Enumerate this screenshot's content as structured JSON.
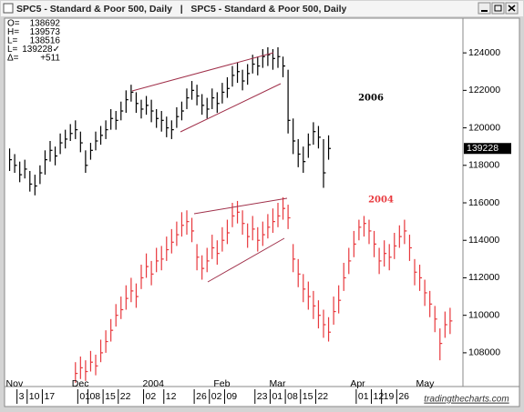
{
  "window_title": "SPC5 - Standard & Poor 500, Daily   |   SPC5 - Standard & Poor 500, Daily",
  "info": [
    {
      "label": "O=",
      "value": "138692"
    },
    {
      "label": "H=",
      "value": "139573"
    },
    {
      "label": "L=",
      "value": "138516"
    },
    {
      "label": "L=",
      "value": "139228✓"
    },
    {
      "label": "Δ=",
      "value": "+511"
    }
  ],
  "price_marker": "139228",
  "watermark": "tradingthecharts.com",
  "chart_data": {
    "type": "hlc",
    "xlim": [
      0,
      90
    ],
    "ylim": [
      106200,
      125850
    ],
    "yticks": [
      108000,
      110000,
      112000,
      114000,
      116000,
      118000,
      120000,
      122000,
      124000
    ],
    "xticks_months": [
      {
        "value": 1,
        "label": "Nov"
      },
      {
        "value": 14,
        "label": "Dec"
      },
      {
        "value": 28,
        "label": "2004"
      },
      {
        "value": 42,
        "label": "Feb"
      },
      {
        "value": 53,
        "label": "Mar"
      },
      {
        "value": 69,
        "label": "Apr"
      },
      {
        "value": 82,
        "label": "May"
      }
    ],
    "xticks_days": [
      {
        "value": 3,
        "label": "3"
      },
      {
        "value": 5,
        "label": "10"
      },
      {
        "value": 8,
        "label": "17"
      },
      {
        "value": 15,
        "label": "01"
      },
      {
        "value": 17,
        "label": "08"
      },
      {
        "value": 20,
        "label": "15"
      },
      {
        "value": 23,
        "label": "22"
      },
      {
        "value": 28,
        "label": "02"
      },
      {
        "value": 32,
        "label": "12"
      },
      {
        "value": 38,
        "label": "26"
      },
      {
        "value": 41,
        "label": "02"
      },
      {
        "value": 44,
        "label": "09"
      },
      {
        "value": 50,
        "label": "23"
      },
      {
        "value": 53,
        "label": "01"
      },
      {
        "value": 56,
        "label": "08"
      },
      {
        "value": 59,
        "label": "15"
      },
      {
        "value": 62,
        "label": "22"
      },
      {
        "value": 70,
        "label": "01"
      },
      {
        "value": 73,
        "label": "12"
      },
      {
        "value": 75,
        "label": "19"
      },
      {
        "value": 78,
        "label": "26"
      }
    ],
    "series": [
      {
        "name": "2006",
        "color": "#000000",
        "values": [
          null,
          [
            118900,
            117700,
            118300
          ],
          [
            118600,
            117600,
            118000
          ],
          [
            118200,
            117100,
            117500
          ],
          [
            118300,
            117300,
            117800
          ],
          [
            117700,
            116600,
            117000
          ],
          [
            117500,
            116400,
            116900
          ],
          [
            118000,
            117000,
            117600
          ],
          [
            118800,
            117500,
            118300
          ],
          [
            119300,
            118200,
            118800
          ],
          [
            119000,
            118000,
            118500
          ],
          [
            119700,
            118600,
            119200
          ],
          [
            119900,
            118900,
            119400
          ],
          [
            120200,
            119300,
            119700
          ],
          [
            120400,
            119400,
            119900
          ],
          [
            119800,
            118700,
            119200
          ],
          [
            118800,
            117600,
            118000
          ],
          [
            119200,
            118300,
            118800
          ],
          [
            119800,
            118800,
            119300
          ],
          [
            120100,
            119100,
            119600
          ],
          [
            120400,
            119400,
            119900
          ],
          [
            121000,
            119900,
            120500
          ],
          [
            120900,
            119900,
            120400
          ],
          [
            121400,
            120400,
            120900
          ],
          [
            122000,
            120800,
            121500
          ],
          [
            122300,
            121400,
            121900
          ],
          [
            121900,
            120800,
            121300
          ],
          [
            121500,
            120500,
            121000
          ],
          [
            121700,
            120700,
            121200
          ],
          [
            121500,
            120300,
            120900
          ],
          [
            121000,
            120000,
            120500
          ],
          [
            120900,
            119800,
            120400
          ],
          [
            120600,
            119500,
            120000
          ],
          [
            120400,
            119400,
            119900
          ],
          [
            121100,
            120000,
            120600
          ],
          [
            121400,
            120400,
            120900
          ],
          [
            122100,
            121000,
            121600
          ],
          [
            122500,
            121500,
            122000
          ],
          [
            122300,
            121200,
            121700
          ],
          [
            121800,
            120700,
            121200
          ],
          [
            121600,
            120500,
            121000
          ],
          [
            122100,
            121000,
            121600
          ],
          [
            121900,
            120800,
            121300
          ],
          [
            122400,
            121300,
            121900
          ],
          [
            122700,
            121600,
            122100
          ],
          [
            123300,
            122200,
            122800
          ],
          [
            123500,
            122400,
            123000
          ],
          [
            123100,
            122000,
            122500
          ],
          [
            123400,
            122300,
            122900
          ],
          [
            123900,
            122900,
            123400
          ],
          [
            123800,
            122800,
            123300
          ],
          [
            124200,
            123200,
            123800
          ],
          [
            124300,
            123300,
            123900
          ],
          [
            124200,
            123100,
            123700
          ],
          [
            124300,
            123200,
            123800
          ],
          [
            123800,
            122700,
            123300
          ],
          [
            123100,
            119700,
            120400
          ],
          [
            120500,
            118600,
            119300
          ],
          [
            119400,
            117900,
            118600
          ],
          [
            119000,
            117600,
            118200
          ],
          [
            119700,
            118400,
            119100
          ],
          [
            120300,
            119100,
            119800
          ],
          [
            120100,
            118900,
            119500
          ],
          [
            119400,
            116800,
            117600
          ],
          [
            119600,
            118300,
            118900
          ],
          null,
          null,
          null,
          null,
          null,
          null,
          null,
          null,
          null,
          null,
          null,
          null,
          null,
          null,
          null,
          null,
          null,
          null,
          null,
          null,
          null,
          null,
          null,
          null
        ]
      },
      {
        "name": "2004",
        "color": "#e8383d",
        "values": [
          null,
          null,
          null,
          null,
          null,
          null,
          null,
          null,
          null,
          null,
          null,
          null,
          null,
          null,
          [
            107500,
            106400,
            106900
          ],
          [
            107800,
            106600,
            107200
          ],
          [
            107600,
            106500,
            107000
          ],
          [
            108100,
            107000,
            107500
          ],
          [
            107900,
            106800,
            107300
          ],
          [
            108700,
            107500,
            108000
          ],
          [
            109200,
            108000,
            108600
          ],
          [
            109800,
            108600,
            109200
          ],
          [
            110600,
            109400,
            110000
          ],
          [
            111000,
            109800,
            110300
          ],
          [
            111600,
            110300,
            110900
          ],
          [
            112000,
            110700,
            111300
          ],
          [
            111700,
            110400,
            111000
          ],
          [
            112700,
            111400,
            112000
          ],
          [
            113300,
            112000,
            112600
          ],
          [
            112900,
            111600,
            112200
          ],
          [
            113600,
            112300,
            112900
          ],
          [
            113700,
            112400,
            113000
          ],
          [
            114200,
            112900,
            113500
          ],
          [
            114600,
            113300,
            113900
          ],
          [
            115000,
            113700,
            114300
          ],
          [
            115500,
            114200,
            114800
          ],
          [
            115600,
            114300,
            115000
          ],
          [
            115200,
            113900,
            114500
          ],
          [
            113800,
            112400,
            113100
          ],
          [
            113200,
            111900,
            112500
          ],
          [
            113600,
            112300,
            112900
          ],
          [
            114300,
            113000,
            113600
          ],
          [
            114000,
            112700,
            113300
          ],
          [
            114700,
            113400,
            114000
          ],
          [
            115100,
            113800,
            114400
          ],
          [
            116000,
            114700,
            115300
          ],
          [
            116100,
            114900,
            115500
          ],
          [
            115600,
            114300,
            114900
          ],
          [
            114900,
            113600,
            114200
          ],
          [
            115300,
            114000,
            114600
          ],
          [
            114700,
            113400,
            114000
          ],
          [
            115000,
            113700,
            114300
          ],
          [
            115400,
            114100,
            114700
          ],
          [
            115700,
            114400,
            115000
          ],
          [
            116000,
            114700,
            115300
          ],
          [
            116300,
            115100,
            115700
          ],
          [
            115900,
            114600,
            115200
          ],
          [
            113800,
            112300,
            113000
          ],
          [
            113000,
            111500,
            112200
          ],
          [
            112200,
            110700,
            111400
          ],
          [
            111800,
            110300,
            111000
          ],
          [
            111300,
            109800,
            110500
          ],
          [
            110800,
            109300,
            110000
          ],
          [
            110300,
            108800,
            109500
          ],
          [
            109900,
            108600,
            109100
          ],
          [
            111000,
            109500,
            110200
          ],
          [
            111600,
            110100,
            110800
          ],
          [
            112800,
            111300,
            112000
          ],
          [
            113600,
            112200,
            112900
          ],
          [
            114500,
            113100,
            113800
          ],
          [
            115100,
            114000,
            114700
          ],
          [
            115300,
            114200,
            114900
          ],
          [
            115100,
            113800,
            114500
          ],
          [
            114500,
            113100,
            113800
          ],
          [
            113600,
            112200,
            112900
          ],
          [
            114000,
            112600,
            113300
          ],
          [
            113800,
            112400,
            113100
          ],
          [
            114400,
            113000,
            113700
          ],
          [
            114800,
            113600,
            114200
          ],
          [
            115100,
            113800,
            114500
          ],
          [
            114300,
            112900,
            113600
          ],
          [
            113000,
            111600,
            112300
          ],
          [
            112700,
            111300,
            112000
          ],
          [
            111900,
            110500,
            111200
          ],
          [
            111300,
            109900,
            110600
          ],
          [
            110500,
            109100,
            109800
          ],
          [
            109300,
            107600,
            108500
          ],
          [
            110200,
            108800,
            109500
          ],
          [
            110400,
            109000,
            109700
          ]
        ]
      }
    ]
  }
}
